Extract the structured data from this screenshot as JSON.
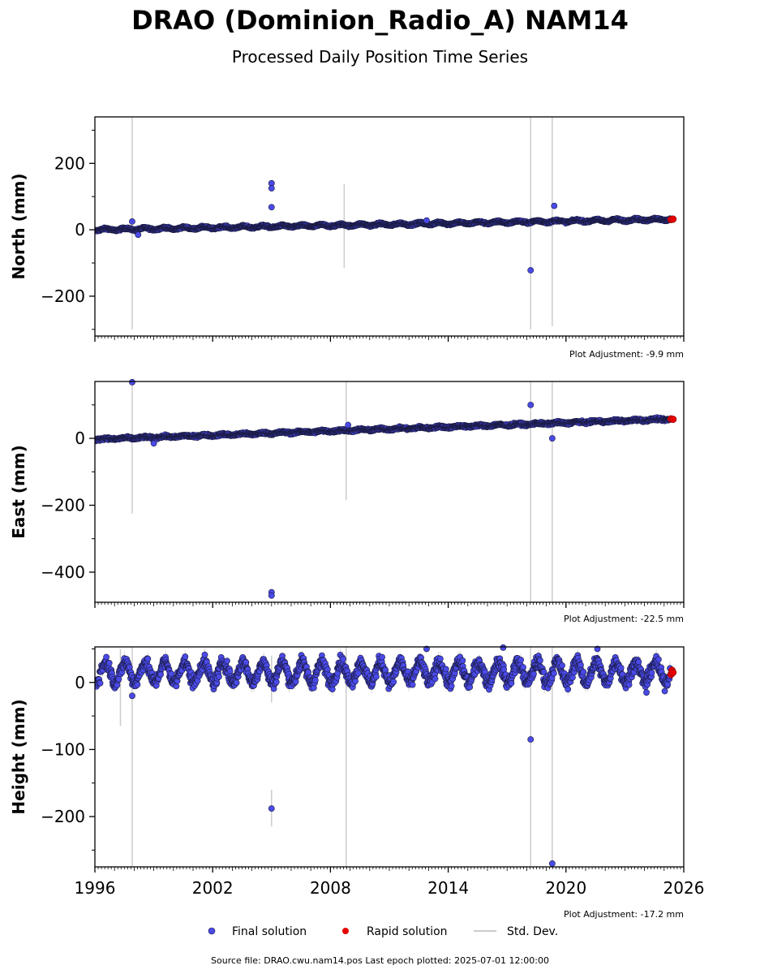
{
  "figure": {
    "title": "DRAO (Dominion_Radio_A) NAM14",
    "subtitle": "Processed Daily Position Time Series",
    "source_line": "Source file: DRAO.cwu.nam14.pos  Last epoch plotted: 2025-07-01 12:00:00"
  },
  "legend": {
    "final": "Final solution",
    "rapid": "Rapid solution",
    "std": "Std. Dev."
  },
  "colors": {
    "final": "#4a4ae8",
    "final_edge": "#1a1a40",
    "rapid": "#e60000",
    "std": "#cccccc",
    "axis": "#000000"
  },
  "chart_data": [
    {
      "type": "scatter",
      "ylabel": "North (mm)",
      "adjustment": "Plot Adjustment: -9.9 mm",
      "xlim": [
        1996,
        2026
      ],
      "ylim": [
        -320,
        340
      ],
      "yticks": [
        -200,
        0,
        200
      ],
      "yticklabels": [
        "−200",
        "0",
        "200"
      ],
      "trend": {
        "x": [
          1996,
          2025.5
        ],
        "y": [
          0,
          32
        ]
      },
      "seasonal_amplitude": 3,
      "noise": 2,
      "outliers": [
        {
          "x": 1997.9,
          "y": 25
        },
        {
          "x": 1998.2,
          "y": -15
        },
        {
          "x": 2005.0,
          "y": 140
        },
        {
          "x": 2005.0,
          "y": 125
        },
        {
          "x": 2005.0,
          "y": 68
        },
        {
          "x": 2012.9,
          "y": 28
        },
        {
          "x": 2018.2,
          "y": -122
        },
        {
          "x": 2019.4,
          "y": 72
        }
      ],
      "rapid": [
        {
          "x": 2025.35,
          "y": 31
        },
        {
          "x": 2025.45,
          "y": 32
        }
      ],
      "error_bars": [
        {
          "x": 1997.9,
          "y0": -300,
          "y1": 340
        },
        {
          "x": 2008.7,
          "y0": -115,
          "y1": 138
        },
        {
          "x": 2018.2,
          "y0": -300,
          "y1": 340
        },
        {
          "x": 2019.3,
          "y0": -290,
          "y1": 340
        }
      ]
    },
    {
      "type": "scatter",
      "ylabel": "East (mm)",
      "adjustment": "Plot Adjustment: -22.5 mm",
      "xlim": [
        1996,
        2026
      ],
      "ylim": [
        -490,
        170
      ],
      "yticks": [
        -400,
        -200,
        0
      ],
      "yticklabels": [
        "−400",
        "−200",
        "0"
      ],
      "trend": {
        "x": [
          1996,
          2025.5
        ],
        "y": [
          -3,
          58
        ]
      },
      "seasonal_amplitude": 2,
      "noise": 2.5,
      "outliers": [
        {
          "x": 1997.9,
          "y": 168
        },
        {
          "x": 1999.0,
          "y": -15
        },
        {
          "x": 2005.0,
          "y": -460
        },
        {
          "x": 2005.0,
          "y": -470
        },
        {
          "x": 2008.9,
          "y": 40
        },
        {
          "x": 2018.2,
          "y": 100
        },
        {
          "x": 2019.3,
          "y": 0
        }
      ],
      "rapid": [
        {
          "x": 2025.35,
          "y": 58
        },
        {
          "x": 2025.45,
          "y": 57
        }
      ],
      "error_bars": [
        {
          "x": 1997.9,
          "y0": -225,
          "y1": 170
        },
        {
          "x": 2008.8,
          "y0": -185,
          "y1": 170
        },
        {
          "x": 2018.2,
          "y0": -490,
          "y1": 170
        },
        {
          "x": 2019.3,
          "y0": -490,
          "y1": 170
        }
      ]
    },
    {
      "type": "scatter",
      "ylabel": "Height (mm)",
      "adjustment": "Plot Adjustment: -17.2 mm",
      "xlim": [
        1996,
        2026
      ],
      "ylim": [
        -275,
        53
      ],
      "yticks": [
        -200,
        -100,
        0
      ],
      "yticklabels": [
        "−200",
        "−100",
        "0"
      ],
      "xticks": [
        1996,
        2002,
        2008,
        2014,
        2020,
        2026
      ],
      "trend": {
        "x": [
          1996,
          2025.5
        ],
        "y": [
          15,
          15
        ]
      },
      "seasonal_amplitude": 15,
      "noise": 7,
      "outliers": [
        {
          "x": 1997.9,
          "y": -20
        },
        {
          "x": 2005.0,
          "y": -188
        },
        {
          "x": 2012.9,
          "y": 50
        },
        {
          "x": 2016.8,
          "y": 52
        },
        {
          "x": 2018.2,
          "y": -85
        },
        {
          "x": 2019.3,
          "y": -270
        },
        {
          "x": 2021.6,
          "y": 50
        },
        {
          "x": 2024.1,
          "y": -15
        }
      ],
      "rapid": [
        {
          "x": 2025.35,
          "y": 12
        },
        {
          "x": 2025.4,
          "y": 18
        },
        {
          "x": 2025.45,
          "y": 15
        }
      ],
      "error_bars": [
        {
          "x": 1997.3,
          "y0": -65,
          "y1": 50
        },
        {
          "x": 1997.9,
          "y0": -275,
          "y1": 53
        },
        {
          "x": 2005.0,
          "y0": -215,
          "y1": -160
        },
        {
          "x": 2005.0,
          "y0": -30,
          "y1": 40
        },
        {
          "x": 2008.8,
          "y0": -275,
          "y1": 53
        },
        {
          "x": 2018.2,
          "y0": -275,
          "y1": 53
        },
        {
          "x": 2019.3,
          "y0": -275,
          "y1": 53
        }
      ]
    }
  ]
}
